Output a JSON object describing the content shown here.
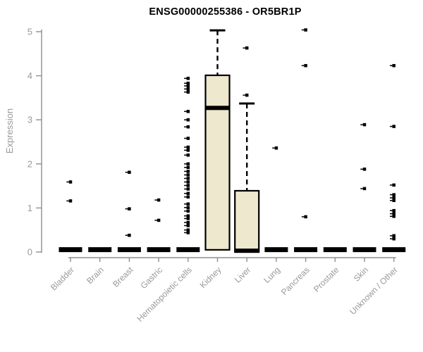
{
  "chart_data": {
    "type": "boxplot",
    "title": "ENSG00000255386 - OR5BR1P",
    "ylabel": "Expression",
    "xlabel": "",
    "ylim": [
      0,
      5.2
    ],
    "yticks": [
      0,
      1,
      2,
      3,
      4,
      5
    ],
    "grid": false,
    "legend": false,
    "categories": [
      "Bladder",
      "Brain",
      "Breast",
      "Gastric",
      "Hematopoietic cells",
      "Kidney",
      "Liver",
      "Lung",
      "Pancreas",
      "Prostate",
      "Skin",
      "Unknown / Other"
    ],
    "boxes": [
      {
        "category": "Bladder",
        "q1": 0,
        "median": 0.03,
        "q3": 0.05,
        "whisker_low": 0,
        "whisker_high": 0.05,
        "outliers": [
          1.59,
          1.16
        ]
      },
      {
        "category": "Brain",
        "q1": 0,
        "median": 0.03,
        "q3": 0.05,
        "whisker_low": 0,
        "whisker_high": 0.05,
        "outliers": []
      },
      {
        "category": "Breast",
        "q1": 0,
        "median": 0.03,
        "q3": 0.05,
        "whisker_low": 0,
        "whisker_high": 0.05,
        "outliers": [
          1.81,
          0.98,
          0.38
        ]
      },
      {
        "category": "Gastric",
        "q1": 0,
        "median": 0.03,
        "q3": 0.05,
        "whisker_low": 0,
        "whisker_high": 0.05,
        "outliers": [
          1.18,
          0.72
        ]
      },
      {
        "category": "Hematopoietic cells",
        "q1": 0,
        "median": 0.03,
        "q3": 0.05,
        "whisker_low": 0,
        "whisker_high": 0.05,
        "outliers": [
          3.94,
          3.83,
          3.77,
          3.7,
          3.63,
          3.19,
          3.0,
          2.84,
          2.58,
          2.38,
          2.31,
          2.2,
          2.0,
          1.92,
          1.83,
          1.75,
          1.67,
          1.59,
          1.51,
          1.43,
          1.33,
          1.25,
          1.09,
          1.01,
          0.93,
          0.82,
          0.76,
          0.67,
          0.6,
          0.5,
          0.44
        ]
      },
      {
        "category": "Kidney",
        "q1": 0.05,
        "median": 3.27,
        "q3": 4.01,
        "whisker_low": 0.05,
        "whisker_high": 5.03,
        "outliers": []
      },
      {
        "category": "Liver",
        "q1": 0,
        "median": 0.03,
        "q3": 1.39,
        "whisker_low": 0,
        "whisker_high": 3.37,
        "outliers": [
          4.63,
          3.56
        ]
      },
      {
        "category": "Lung",
        "q1": 0,
        "median": 0.03,
        "q3": 0.05,
        "whisker_low": 0,
        "whisker_high": 0.05,
        "outliers": [
          2.36
        ]
      },
      {
        "category": "Pancreas",
        "q1": 0,
        "median": 0.03,
        "q3": 0.05,
        "whisker_low": 0,
        "whisker_high": 0.05,
        "outliers": [
          5.04,
          4.23,
          0.8
        ]
      },
      {
        "category": "Prostate",
        "q1": 0,
        "median": 0.03,
        "q3": 0.05,
        "whisker_low": 0,
        "whisker_high": 0.05,
        "outliers": []
      },
      {
        "category": "Skin",
        "q1": 0,
        "median": 0.03,
        "q3": 0.05,
        "whisker_low": 0,
        "whisker_high": 0.05,
        "outliers": [
          2.89,
          1.88,
          1.44
        ]
      },
      {
        "category": "Unknown / Other",
        "q1": 0,
        "median": 0.03,
        "q3": 0.05,
        "whisker_low": 0,
        "whisker_high": 0.05,
        "outliers": [
          4.23,
          2.85,
          1.52,
          1.3,
          1.23,
          1.17,
          0.94,
          0.87,
          0.81,
          0.37,
          0.3
        ]
      }
    ]
  },
  "colors": {
    "box_fill": "#EDE8CE",
    "box_stroke": "#000000",
    "median": "#000000",
    "whisker": "#000000",
    "outlier": "#000000",
    "axis_line": "#8f8f8f",
    "tick_label": "#999999",
    "title": "#000000",
    "background": "#ffffff"
  }
}
